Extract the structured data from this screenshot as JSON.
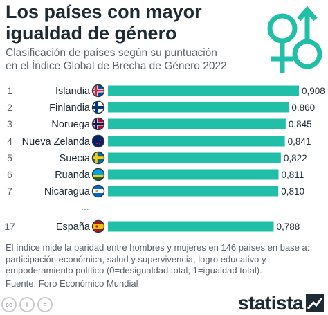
{
  "header": {
    "title_lines": [
      "Los países con mayor",
      "igualdad de género"
    ],
    "subtitle_lines": [
      "Clasificación de países según su puntuación",
      "en el Índice Global de Brecha de Género 2022"
    ]
  },
  "colors": {
    "bar": "#22bfa8",
    "title": "#1e2b35",
    "text": "#59636b",
    "gender_symbol": "#22bfa8"
  },
  "gender_icon": "venus-mars-icon",
  "chart_data": {
    "type": "bar",
    "orientation": "horizontal",
    "ranks": [
      "1",
      "2",
      "3",
      "4",
      "5",
      "6",
      "7",
      "17"
    ],
    "categories": [
      "Islandia",
      "Finlandia",
      "Noruega",
      "Nueva Zelanda",
      "Suecia",
      "Ruanda",
      "Nicaragua",
      "España"
    ],
    "values": [
      0.908,
      0.86,
      0.845,
      0.841,
      0.822,
      0.811,
      0.81,
      0.788
    ],
    "value_labels": [
      "0,908",
      "0,860",
      "0,845",
      "0,841",
      "0,822",
      "0,811",
      "0,810",
      "0,788"
    ],
    "flags": [
      "iceland-flag-icon",
      "finland-flag-icon",
      "norway-flag-icon",
      "new-zealand-flag-icon",
      "sweden-flag-icon",
      "rwanda-flag-icon",
      "nicaragua-flag-icon",
      "spain-flag-icon"
    ],
    "gap_marker": "...",
    "grid": false,
    "xlim": [
      0,
      0.908
    ]
  },
  "footnote_lines": [
    "El índice mide la paridad entre hombres y mujeres en 146 países en base a:",
    "participación económica, salud y supervivencia, logro educativo y",
    "empoderamiento político (0=desigualdad total; 1=igualdad total)."
  ],
  "source": "Fuente: Foro Económico Mundial",
  "license_icons": [
    "cc-icon",
    "by-icon",
    "nd-icon"
  ],
  "license_labels": [
    "cc",
    "i",
    "="
  ],
  "brand": {
    "name": "statista"
  }
}
